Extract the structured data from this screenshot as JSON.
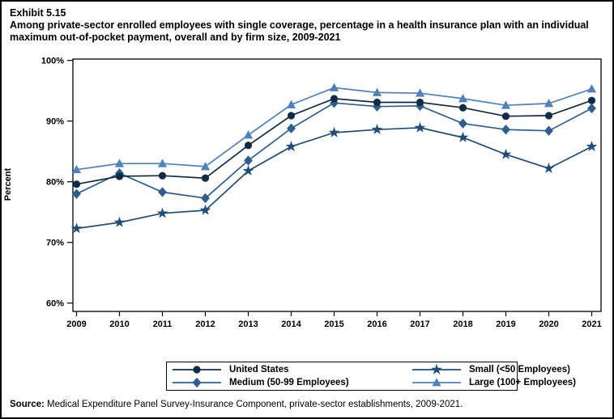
{
  "exhibit": {
    "number": "Exhibit 5.15",
    "title": "Among private-sector enrolled employees with single coverage, percentage in a health insurance plan with an individual maximum out-of-pocket payment, overall and by firm size, 2009-2021"
  },
  "source": {
    "label": "Source:",
    "text": " Medical Expenditure Panel Survey-Insurance Component, private-sector establishments, 2009-2021."
  },
  "chart_data": {
    "type": "line",
    "x": [
      2009,
      2010,
      2011,
      2012,
      2013,
      2014,
      2015,
      2016,
      2017,
      2018,
      2019,
      2020,
      2021
    ],
    "xlabel": "",
    "ylabel": "Percent",
    "ylim": [
      60,
      100
    ],
    "yticks": [
      60,
      70,
      80,
      90,
      100
    ],
    "ytick_suffix": "%",
    "grid": false,
    "legend_position": "bottom",
    "axis_color": "#000000",
    "series": [
      {
        "name": "United States",
        "marker": "circle",
        "color": "#122b44",
        "values": [
          79.6,
          80.9,
          81.0,
          80.6,
          86.0,
          90.9,
          93.7,
          93.1,
          93.1,
          92.2,
          90.8,
          90.9,
          93.4
        ]
      },
      {
        "name": "Small (<50 Employees)",
        "marker": "star",
        "color": "#1f4e79",
        "values": [
          72.3,
          73.3,
          74.8,
          75.3,
          81.8,
          85.8,
          88.1,
          88.6,
          88.9,
          87.3,
          84.5,
          82.2,
          85.8
        ]
      },
      {
        "name": "Medium (50-99 Employees)",
        "marker": "diamond",
        "color": "#2e5e8e",
        "values": [
          78.0,
          81.4,
          78.3,
          77.3,
          83.5,
          88.8,
          93.0,
          92.4,
          92.5,
          89.6,
          88.6,
          88.4,
          92.1
        ]
      },
      {
        "name": "Large (100+ Employees)",
        "marker": "triangle",
        "color": "#4f81bd",
        "values": [
          82.0,
          83.0,
          83.0,
          82.5,
          87.7,
          92.7,
          95.5,
          94.7,
          94.6,
          93.7,
          92.6,
          92.9,
          95.3
        ]
      }
    ]
  }
}
